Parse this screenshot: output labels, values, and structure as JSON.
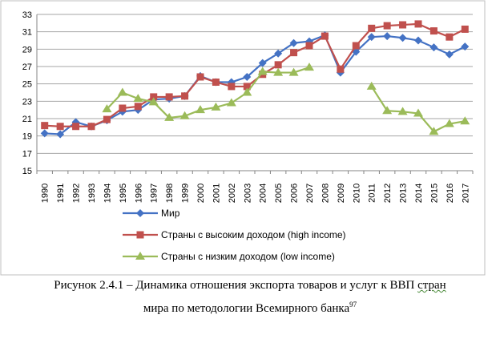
{
  "chart_data": {
    "type": "line",
    "x": [
      "1990",
      "1991",
      "1992",
      "1993",
      "1994",
      "1995",
      "1996",
      "1997",
      "1998",
      "1999",
      "2000",
      "2001",
      "2002",
      "2003",
      "2004",
      "2005",
      "2006",
      "2007",
      "2008",
      "2009",
      "2010",
      "2011",
      "2012",
      "2013",
      "2014",
      "2015",
      "2016",
      "2017"
    ],
    "ylim": [
      15,
      33
    ],
    "yticks": [
      "15",
      "17",
      "19",
      "21",
      "23",
      "25",
      "27",
      "29",
      "31",
      "33"
    ],
    "grid": true,
    "legend_position": "bottom-left",
    "series": [
      {
        "name": "Мир",
        "color": "#4472C4",
        "marker": "diamond",
        "values": [
          19.3,
          19.2,
          20.6,
          20.1,
          20.8,
          21.8,
          22.0,
          23.2,
          23.3,
          23.6,
          25.9,
          25.2,
          25.2,
          25.8,
          27.4,
          28.5,
          29.7,
          29.9,
          30.6,
          26.3,
          28.7,
          30.4,
          30.5,
          30.3,
          30.0,
          29.2,
          28.4,
          29.3
        ]
      },
      {
        "name": "Страны с высоким доходом (high income)",
        "color": "#C0504D",
        "marker": "square",
        "values": [
          20.2,
          20.1,
          20.1,
          20.1,
          20.9,
          22.2,
          22.4,
          23.5,
          23.5,
          23.6,
          25.8,
          25.2,
          24.7,
          24.7,
          26.1,
          27.2,
          28.6,
          29.4,
          30.5,
          26.7,
          29.4,
          31.4,
          31.7,
          31.8,
          31.9,
          31.1,
          30.4,
          31.3
        ]
      },
      {
        "name": "Страны с низким доходом (low income)",
        "color": "#9BBB59",
        "marker": "triangle",
        "values": [
          null,
          null,
          null,
          null,
          22.1,
          24.0,
          23.3,
          22.9,
          21.1,
          21.3,
          22.0,
          22.3,
          22.8,
          24.0,
          26.4,
          26.3,
          26.3,
          26.9,
          null,
          null,
          null,
          24.7,
          21.9,
          21.8,
          21.6,
          19.5,
          20.4,
          20.7
        ]
      }
    ]
  },
  "caption": {
    "line1_main": "Рисунок 2.4.1 – Динамика отношения экспорта товаров и услуг к ВВП ",
    "line1_tail": "стран",
    "line2_main": "мира по методологии Всемирного банка",
    "line2_sup": "97"
  }
}
